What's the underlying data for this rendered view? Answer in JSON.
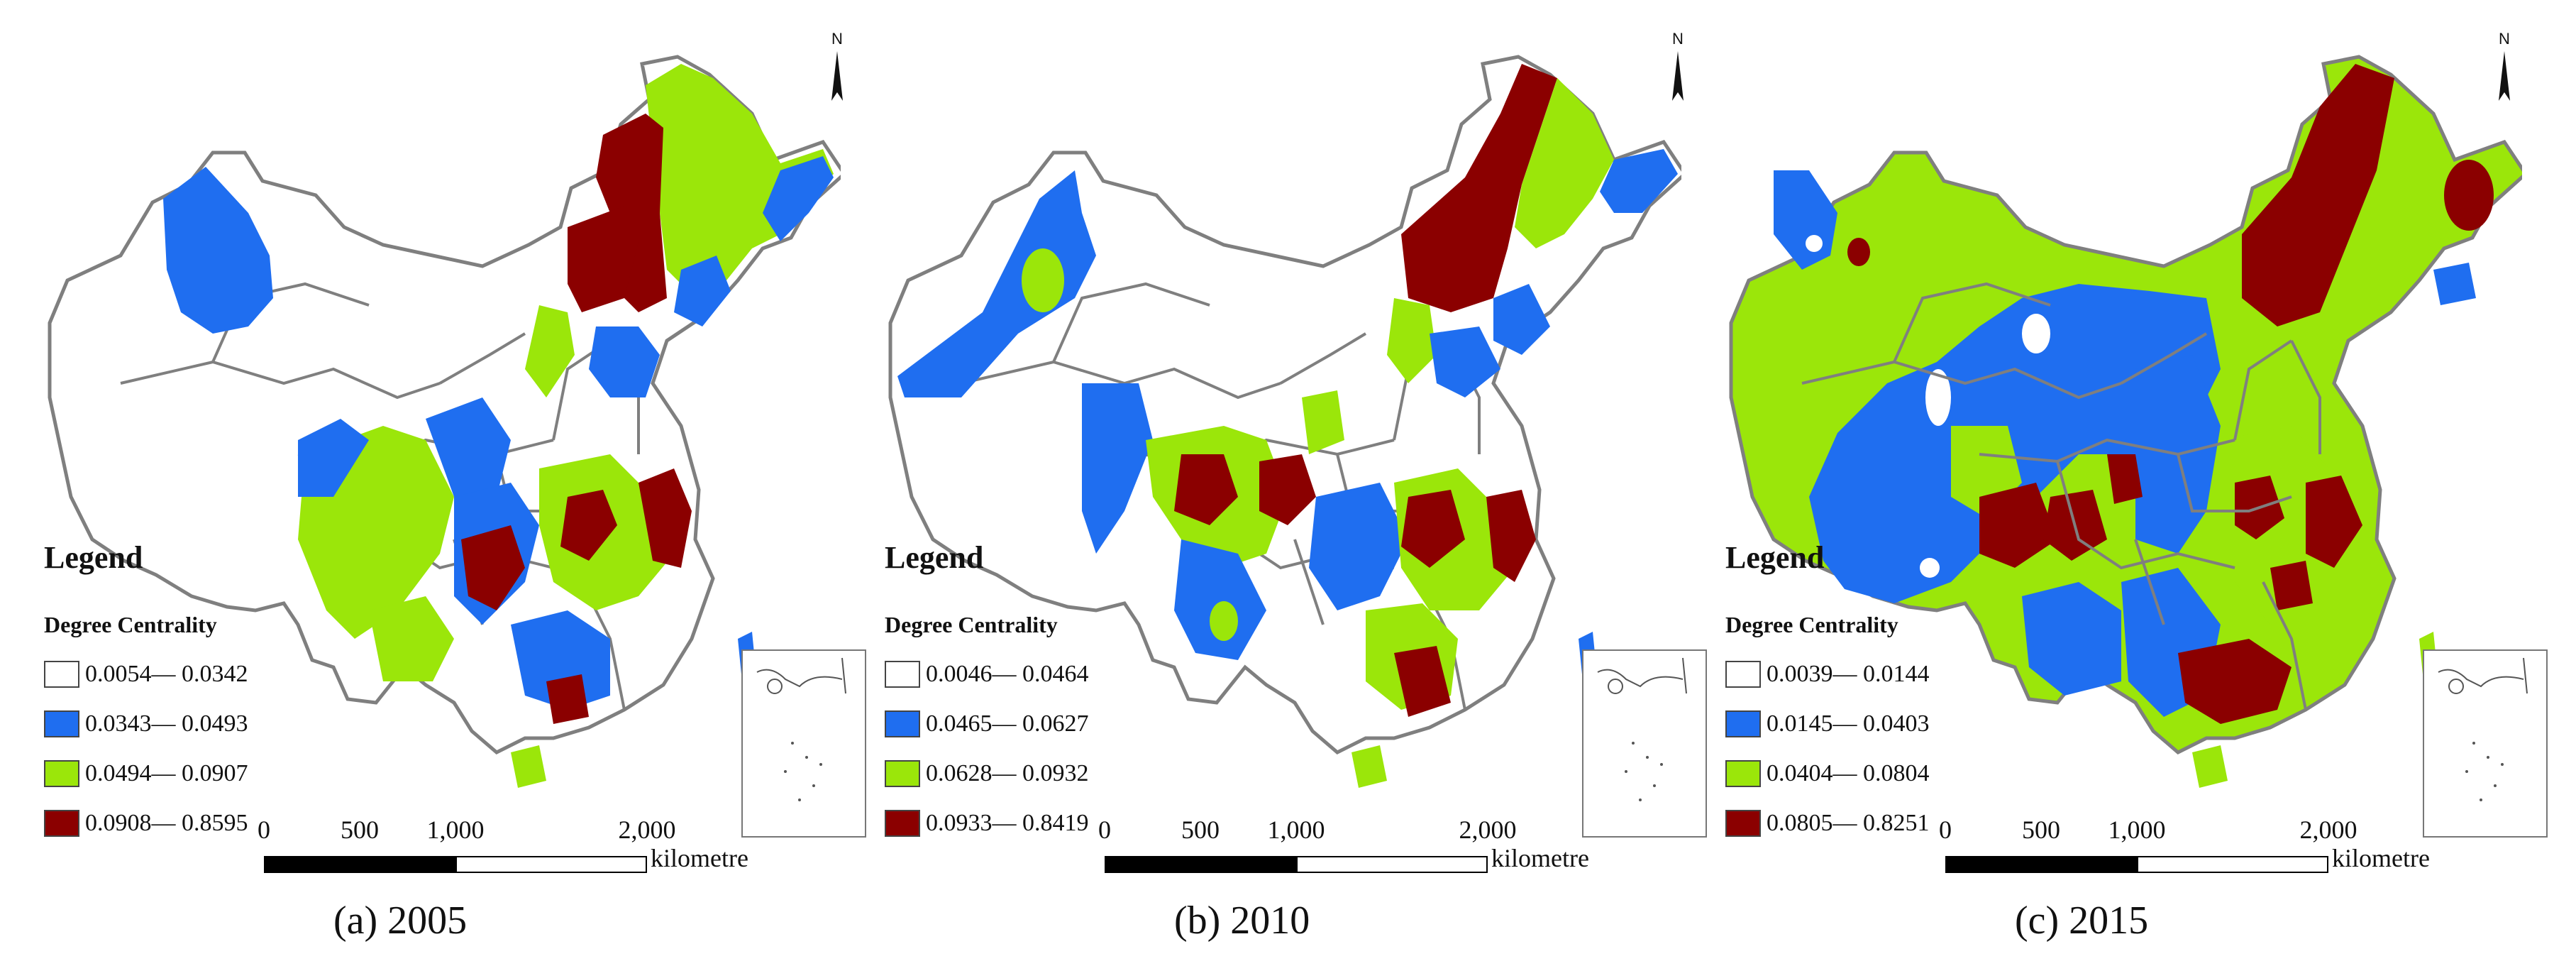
{
  "legend": {
    "title": "Legend",
    "subtitle": "Degree Centrality"
  },
  "colors": {
    "class1": "#ffffff",
    "class2": "#1f6ef0",
    "class3": "#9be60a",
    "class4": "#8b0000",
    "boundary": "#7f7f7f"
  },
  "scale_bar": {
    "ticks": [
      "0",
      "500",
      "1,000",
      "2,000"
    ],
    "unit": "kilometre"
  },
  "north_label": "N",
  "panels": [
    {
      "caption": "(a)  2005",
      "classes": [
        "0.0054— 0.0342",
        "0.0343— 0.0493",
        "0.0494— 0.0907",
        "0.0908— 0.8595"
      ]
    },
    {
      "caption": "(b)  2010",
      "classes": [
        "0.0046— 0.0464",
        "0.0465— 0.0627",
        "0.0628— 0.0932",
        "0.0933— 0.8419"
      ]
    },
    {
      "caption": "(c)  2015",
      "classes": [
        "0.0039— 0.0144",
        "0.0145— 0.0403",
        "0.0404— 0.0804",
        "0.0805— 0.8251"
      ]
    }
  ]
}
